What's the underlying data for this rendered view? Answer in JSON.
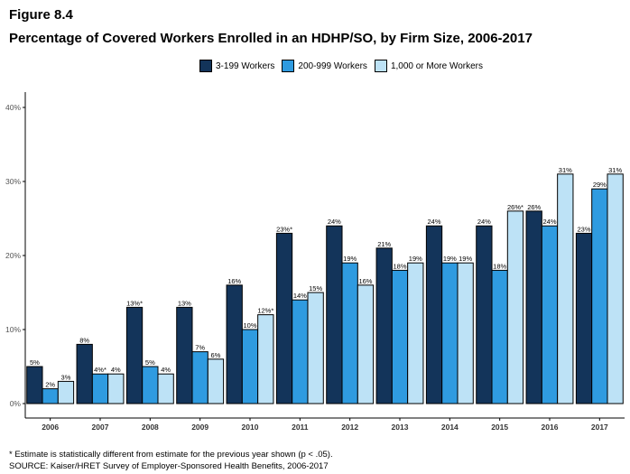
{
  "figure_label": "Figure 8.4",
  "title": "Percentage of Covered Workers Enrolled in an HDHP/SO, by Firm Size, 2006-2017",
  "footnote": "* Estimate is statistically different from estimate for the previous year shown (p < .05).",
  "source": "SOURCE: Kaiser/HRET Survey of Employer-Sponsored Health Benefits, 2006-2017",
  "colors": {
    "small": "#13345a",
    "mid": "#2f9be0",
    "large": "#bde2f6"
  },
  "chart_data": {
    "type": "bar",
    "categories": [
      "2006",
      "2007",
      "2008",
      "2009",
      "2010",
      "2011",
      "2012",
      "2013",
      "2014",
      "2015",
      "2016",
      "2017"
    ],
    "series": [
      {
        "name": "3-199 Workers",
        "values": [
          5,
          8,
          13,
          13,
          16,
          23,
          24,
          21,
          24,
          24,
          26,
          23
        ],
        "labels": [
          "5%",
          "8%",
          "13%*",
          "13%",
          "16%",
          "23%*",
          "24%",
          "21%",
          "24%",
          "24%",
          "26%",
          "23%"
        ]
      },
      {
        "name": "200-999 Workers",
        "values": [
          2,
          4,
          5,
          7,
          10,
          14,
          19,
          18,
          19,
          18,
          24,
          29
        ],
        "labels": [
          "2%",
          "4%*",
          "5%",
          "7%",
          "10%",
          "14%",
          "19%",
          "18%",
          "19%",
          "18%",
          "24%",
          "29%"
        ]
      },
      {
        "name": "1,000 or More Workers",
        "values": [
          3,
          4,
          4,
          6,
          12,
          15,
          16,
          19,
          19,
          26,
          31,
          31
        ],
        "labels": [
          "3%",
          "4%",
          "4%",
          "6%",
          "12%*",
          "15%",
          "16%",
          "19%",
          "19%",
          "26%*",
          "31%",
          "31%"
        ]
      }
    ],
    "y_ticks": [
      "0%",
      "10%",
      "20%",
      "30%",
      "40%"
    ],
    "ylim": [
      0,
      40
    ],
    "legend_position": "top-center",
    "grid": false
  }
}
